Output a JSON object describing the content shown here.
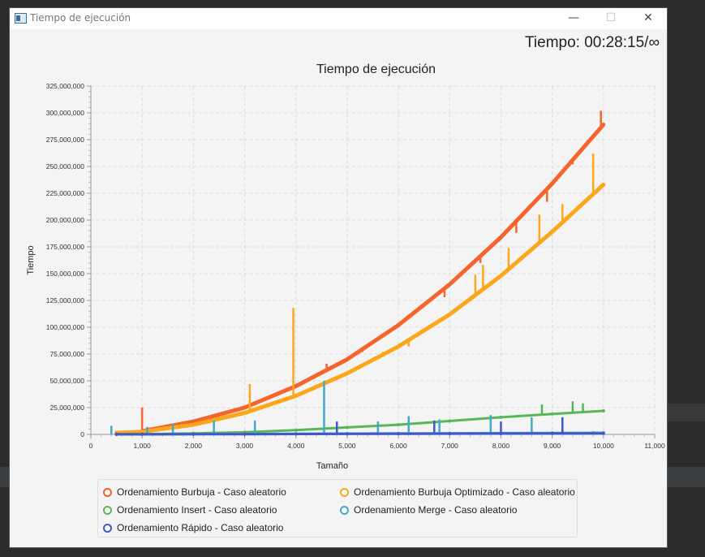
{
  "window": {
    "title": "Tiempo de ejecución",
    "timer": "Tiempo: 00:28:15/∞",
    "minimize": "—",
    "maximize": "☐",
    "close": "✕"
  },
  "colors": {
    "burbuja": "#f4642c",
    "burbuja_opt": "#fba71b",
    "insert": "#57b757",
    "merge": "#41a9c9",
    "rapido": "#4258c9"
  },
  "chart_data": {
    "type": "line",
    "title": "Tiempo de ejecución",
    "xlabel": "Tamaño",
    "ylabel": "Tiempo",
    "xlim": [
      0,
      11000
    ],
    "ylim": [
      0,
      325000000
    ],
    "xticks": [
      "0",
      "1,000",
      "2,000",
      "3,000",
      "4,000",
      "5,000",
      "6,000",
      "7,000",
      "8,000",
      "9,000",
      "10,000",
      "11,000"
    ],
    "yticks": [
      "0",
      "25,000,000",
      "50,000,000",
      "75,000,000",
      "100,000,000",
      "125,000,000",
      "150,000,000",
      "175,000,000",
      "200,000,000",
      "225,000,000",
      "250,000,000",
      "275,000,000",
      "300,000,000",
      "325,000,000"
    ],
    "grid": true,
    "legend_position": "bottom",
    "series": [
      {
        "name": "Ordenamiento Burbuja - Caso aleatorio",
        "color_key": "burbuja",
        "x": [
          1000,
          2000,
          3000,
          4000,
          5000,
          6000,
          7000,
          8000,
          9000,
          10000
        ],
        "y": [
          3000000,
          12000000,
          25000000,
          45000000,
          70000000,
          102000000,
          140000000,
          184000000,
          234000000,
          289000000
        ],
        "spikes": [
          [
            1000,
            25000000
          ],
          [
            4000,
            47000000
          ],
          [
            4600,
            66000000
          ],
          [
            5300,
            77000000
          ],
          [
            5900,
            101000000
          ],
          [
            6900,
            128000000
          ],
          [
            7600,
            160000000
          ],
          [
            8300,
            188000000
          ],
          [
            8900,
            217000000
          ],
          [
            9400,
            252000000
          ],
          [
            9950,
            302000000
          ]
        ]
      },
      {
        "name": "Ordenamiento Burbuja Optimizado - Caso aleatorio",
        "color_key": "burbuja_opt",
        "x": [
          500,
          1000,
          2000,
          3000,
          4000,
          5000,
          6000,
          7000,
          8000,
          9000,
          10000
        ],
        "y": [
          1500000,
          2500000,
          9000000,
          20000000,
          36000000,
          57000000,
          82000000,
          112000000,
          148000000,
          189000000,
          233000000
        ],
        "spikes": [
          [
            3100,
            47000000
          ],
          [
            3950,
            118000000
          ],
          [
            5700,
            77000000
          ],
          [
            6200,
            82000000
          ],
          [
            7500,
            149000000
          ],
          [
            7650,
            158000000
          ],
          [
            8150,
            174000000
          ],
          [
            8750,
            205000000
          ],
          [
            9200,
            215000000
          ],
          [
            9800,
            262000000
          ]
        ]
      },
      {
        "name": "Ordenamiento Insert - Caso aleatorio",
        "color_key": "insert",
        "x": [
          500,
          1000,
          2000,
          3000,
          4000,
          5000,
          6000,
          7000,
          8000,
          9000,
          10000
        ],
        "y": [
          200000,
          300000,
          1000000,
          2000000,
          4000000,
          6500000,
          9000000,
          12500000,
          16000000,
          19000000,
          22000000
        ],
        "spikes": [
          [
            8800,
            28000000
          ],
          [
            9400,
            31000000
          ],
          [
            9600,
            29000000
          ]
        ]
      },
      {
        "name": "Ordenamiento Merge - Caso aleatorio",
        "color_key": "merge",
        "x": [
          500,
          1000,
          2000,
          3000,
          4000,
          5000,
          6000,
          7000,
          8000,
          9000,
          10000
        ],
        "y": [
          100000,
          150000,
          300000,
          450000,
          600000,
          750000,
          900000,
          1050000,
          1200000,
          1350000,
          1500000
        ],
        "spikes": [
          [
            400,
            8000000
          ],
          [
            1100,
            7000000
          ],
          [
            1600,
            10000000
          ],
          [
            2400,
            13000000
          ],
          [
            3200,
            13000000
          ],
          [
            4550,
            50000000
          ],
          [
            5600,
            12000000
          ],
          [
            6200,
            17000000
          ],
          [
            6800,
            14000000
          ],
          [
            7800,
            18000000
          ],
          [
            8600,
            16000000
          ],
          [
            9200,
            15000000
          ],
          [
            9800,
            3000000
          ]
        ]
      },
      {
        "name": "Ordenamiento Rápido - Caso aleatorio",
        "color_key": "rapido",
        "x": [
          500,
          1000,
          2000,
          3000,
          4000,
          5000,
          6000,
          7000,
          8000,
          9000,
          10000
        ],
        "y": [
          50000,
          80000,
          150000,
          250000,
          350000,
          450000,
          550000,
          650000,
          750000,
          850000,
          950000
        ],
        "spikes": [
          [
            4800,
            12000000
          ],
          [
            6700,
            13000000
          ],
          [
            8000,
            12000000
          ],
          [
            9200,
            16000000
          ]
        ]
      }
    ]
  }
}
